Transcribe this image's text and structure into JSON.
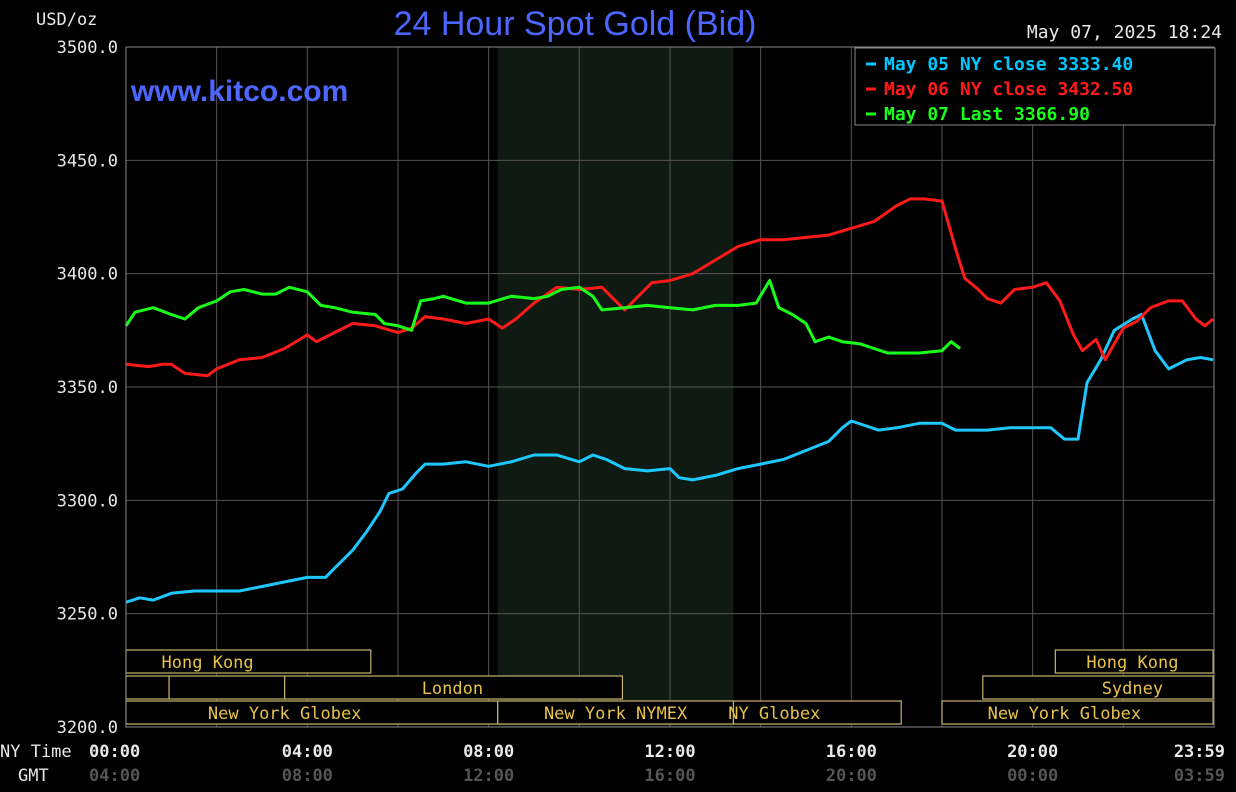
{
  "chart_data": {
    "type": "line",
    "title": "24 Hour Spot Gold (Bid)",
    "watermark": "www.kitco.com",
    "unit_label": "USD/oz",
    "timestamp": "May 07, 2025 18:24",
    "ylim": [
      3200,
      3500
    ],
    "yticks": [
      "3500.0",
      "3450.0",
      "3400.0",
      "3350.0",
      "3300.0",
      "3250.0",
      "3200.0"
    ],
    "ytick_values": [
      3500,
      3450,
      3400,
      3350,
      3300,
      3250,
      3200
    ],
    "x_row_labels": {
      "ny": "NY Time",
      "gmt": "GMT"
    },
    "x_ticks": [
      {
        "hour": 0,
        "ny": "00:00",
        "gmt": "04:00"
      },
      {
        "hour": 4,
        "ny": "04:00",
        "gmt": "08:00"
      },
      {
        "hour": 8,
        "ny": "08:00",
        "gmt": "12:00"
      },
      {
        "hour": 12,
        "ny": "12:00",
        "gmt": "16:00"
      },
      {
        "hour": 16,
        "ny": "16:00",
        "gmt": "20:00"
      },
      {
        "hour": 20,
        "ny": "20:00",
        "gmt": "00:00"
      },
      {
        "hour": 23.983,
        "ny": "23:59",
        "gmt": "03:59"
      }
    ],
    "x_range_hours": [
      0,
      24
    ],
    "grid": true,
    "shaded_hours": [
      8.2,
      13.4
    ],
    "legend": {
      "placement": "top-right",
      "entries": [
        {
          "text": "May 05 NY close 3333.40",
          "color": "#00c8ff"
        },
        {
          "text": "May 06 NY close 3432.50",
          "color": "#ff1a1a"
        },
        {
          "text": "May 07 Last 3366.90",
          "color": "#1aff1a"
        }
      ]
    },
    "series": [
      {
        "name": "May 05",
        "color": "#1ec8ff",
        "points": [
          [
            0,
            3255
          ],
          [
            0.3,
            3257
          ],
          [
            0.6,
            3256
          ],
          [
            1.0,
            3259
          ],
          [
            1.5,
            3260
          ],
          [
            2.0,
            3260
          ],
          [
            2.5,
            3260
          ],
          [
            3.0,
            3262
          ],
          [
            3.5,
            3264
          ],
          [
            4.0,
            3266
          ],
          [
            4.4,
            3266
          ],
          [
            4.6,
            3270
          ],
          [
            5.0,
            3278
          ],
          [
            5.3,
            3286
          ],
          [
            5.6,
            3295
          ],
          [
            5.8,
            3303
          ],
          [
            6.1,
            3305
          ],
          [
            6.4,
            3312
          ],
          [
            6.6,
            3316
          ],
          [
            7.0,
            3316
          ],
          [
            7.5,
            3317
          ],
          [
            8.0,
            3315
          ],
          [
            8.5,
            3317
          ],
          [
            9.0,
            3320
          ],
          [
            9.5,
            3320
          ],
          [
            10.0,
            3317
          ],
          [
            10.3,
            3320
          ],
          [
            10.6,
            3318
          ],
          [
            11.0,
            3314
          ],
          [
            11.5,
            3313
          ],
          [
            12.0,
            3314
          ],
          [
            12.2,
            3310
          ],
          [
            12.5,
            3309
          ],
          [
            13.0,
            3311
          ],
          [
            13.5,
            3314
          ],
          [
            14.0,
            3316
          ],
          [
            14.5,
            3318
          ],
          [
            15.0,
            3322
          ],
          [
            15.5,
            3326
          ],
          [
            15.8,
            3332
          ],
          [
            16.0,
            3335
          ],
          [
            16.3,
            3333
          ],
          [
            16.6,
            3331
          ],
          [
            17.0,
            3332
          ],
          [
            17.5,
            3334
          ],
          [
            18.0,
            3334
          ],
          [
            18.3,
            3331
          ],
          [
            18.6,
            3331
          ],
          [
            19.0,
            3331
          ],
          [
            19.5,
            3332
          ],
          [
            20.0,
            3332
          ],
          [
            20.4,
            3332
          ],
          [
            20.7,
            3327
          ],
          [
            21.0,
            3327
          ],
          [
            21.2,
            3352
          ],
          [
            21.5,
            3362
          ],
          [
            21.8,
            3375
          ],
          [
            22.2,
            3380
          ],
          [
            22.4,
            3382
          ],
          [
            22.7,
            3366
          ],
          [
            23.0,
            3358
          ],
          [
            23.4,
            3362
          ],
          [
            23.7,
            3363
          ],
          [
            23.98,
            3362
          ]
        ]
      },
      {
        "name": "May 06",
        "color": "#ff1a1a",
        "points": [
          [
            0,
            3360
          ],
          [
            0.5,
            3359
          ],
          [
            0.8,
            3360
          ],
          [
            1.0,
            3360
          ],
          [
            1.3,
            3356
          ],
          [
            1.8,
            3355
          ],
          [
            2.0,
            3358
          ],
          [
            2.5,
            3362
          ],
          [
            3.0,
            3363
          ],
          [
            3.5,
            3367
          ],
          [
            4.0,
            3373
          ],
          [
            4.2,
            3370
          ],
          [
            4.6,
            3374
          ],
          [
            5.0,
            3378
          ],
          [
            5.5,
            3377
          ],
          [
            6.0,
            3374
          ],
          [
            6.3,
            3376
          ],
          [
            6.6,
            3381
          ],
          [
            7.0,
            3380
          ],
          [
            7.5,
            3378
          ],
          [
            8.0,
            3380
          ],
          [
            8.3,
            3376
          ],
          [
            8.6,
            3380
          ],
          [
            9.0,
            3387
          ],
          [
            9.5,
            3394
          ],
          [
            10.0,
            3393
          ],
          [
            10.5,
            3394
          ],
          [
            10.8,
            3388
          ],
          [
            11.0,
            3384
          ],
          [
            11.3,
            3390
          ],
          [
            11.6,
            3396
          ],
          [
            12.0,
            3397
          ],
          [
            12.5,
            3400
          ],
          [
            13.0,
            3406
          ],
          [
            13.5,
            3412
          ],
          [
            14.0,
            3415
          ],
          [
            14.5,
            3415
          ],
          [
            15.0,
            3416
          ],
          [
            15.5,
            3417
          ],
          [
            16.0,
            3420
          ],
          [
            16.5,
            3423
          ],
          [
            17.0,
            3430
          ],
          [
            17.3,
            3433
          ],
          [
            17.6,
            3433
          ],
          [
            18.0,
            3432
          ],
          [
            18.3,
            3411
          ],
          [
            18.5,
            3398
          ],
          [
            18.8,
            3393
          ],
          [
            19.0,
            3389
          ],
          [
            19.3,
            3387
          ],
          [
            19.6,
            3393
          ],
          [
            20.0,
            3394
          ],
          [
            20.3,
            3396
          ],
          [
            20.6,
            3388
          ],
          [
            20.9,
            3373
          ],
          [
            21.1,
            3366
          ],
          [
            21.4,
            3371
          ],
          [
            21.6,
            3362
          ],
          [
            22.0,
            3376
          ],
          [
            22.3,
            3379
          ],
          [
            22.6,
            3385
          ],
          [
            23.0,
            3388
          ],
          [
            23.3,
            3388
          ],
          [
            23.6,
            3380
          ],
          [
            23.8,
            3377
          ],
          [
            23.98,
            3380
          ]
        ]
      },
      {
        "name": "May 07",
        "color": "#1aff1a",
        "points": [
          [
            0,
            3377
          ],
          [
            0.2,
            3383
          ],
          [
            0.6,
            3385
          ],
          [
            1.0,
            3382
          ],
          [
            1.3,
            3380
          ],
          [
            1.6,
            3385
          ],
          [
            2.0,
            3388
          ],
          [
            2.3,
            3392
          ],
          [
            2.6,
            3393
          ],
          [
            3.0,
            3391
          ],
          [
            3.3,
            3391
          ],
          [
            3.6,
            3394
          ],
          [
            4.0,
            3392
          ],
          [
            4.3,
            3386
          ],
          [
            4.6,
            3385
          ],
          [
            5.0,
            3383
          ],
          [
            5.5,
            3382
          ],
          [
            5.7,
            3378
          ],
          [
            6.0,
            3377
          ],
          [
            6.3,
            3375
          ],
          [
            6.5,
            3388
          ],
          [
            6.8,
            3389
          ],
          [
            7.0,
            3390
          ],
          [
            7.5,
            3387
          ],
          [
            8.0,
            3387
          ],
          [
            8.5,
            3390
          ],
          [
            9.0,
            3389
          ],
          [
            9.3,
            3390
          ],
          [
            9.6,
            3393
          ],
          [
            10.0,
            3394
          ],
          [
            10.3,
            3390
          ],
          [
            10.5,
            3384
          ],
          [
            11.0,
            3385
          ],
          [
            11.5,
            3386
          ],
          [
            12.0,
            3385
          ],
          [
            12.5,
            3384
          ],
          [
            13.0,
            3386
          ],
          [
            13.5,
            3386
          ],
          [
            13.9,
            3387
          ],
          [
            14.2,
            3397
          ],
          [
            14.4,
            3385
          ],
          [
            14.7,
            3382
          ],
          [
            15.0,
            3378
          ],
          [
            15.2,
            3370
          ],
          [
            15.5,
            3372
          ],
          [
            15.8,
            3370
          ],
          [
            16.2,
            3369
          ],
          [
            16.5,
            3367
          ],
          [
            16.8,
            3365
          ],
          [
            17.0,
            3365
          ],
          [
            17.5,
            3365
          ],
          [
            18.0,
            3366
          ],
          [
            18.2,
            3370
          ],
          [
            18.4,
            3367
          ]
        ]
      }
    ],
    "sessions": [
      {
        "label": "Hong Kong",
        "row": 0,
        "start": 0,
        "end": 5.4,
        "label_at": 1.8,
        "show_label": true
      },
      {
        "label": "",
        "row": 1,
        "start": 0,
        "end": 0.95,
        "label_at": 0,
        "show_label": false
      },
      {
        "label": "",
        "row": 1,
        "start": 0.95,
        "end": 3.5,
        "label_at": 0,
        "show_label": false
      },
      {
        "label": "London",
        "row": 1,
        "start": 3.5,
        "end": 10.95,
        "label_at": 7.2,
        "show_label": true
      },
      {
        "label": "New York Globex",
        "row": 2,
        "start": 0,
        "end": 8.2,
        "label_at": 3.5,
        "show_label": true
      },
      {
        "label": "New York NYMEX",
        "row": 2,
        "start": 8.2,
        "end": 13.4,
        "label_at": 10.8,
        "show_label": true
      },
      {
        "label": "NY Globex",
        "row": 2,
        "start": 13.4,
        "end": 17.1,
        "label_at": 14.3,
        "show_label": true
      },
      {
        "label": "Hong Kong",
        "row": 0,
        "start": 20.5,
        "end": 23.98,
        "label_at": 22.2,
        "show_label": true
      },
      {
        "label": "Sydney",
        "row": 1,
        "start": 18.9,
        "end": 23.98,
        "label_at": 22.2,
        "show_label": true
      },
      {
        "label": "New York Globex",
        "row": 2,
        "start": 18.0,
        "end": 23.98,
        "label_at": 20.7,
        "show_label": true
      }
    ]
  }
}
